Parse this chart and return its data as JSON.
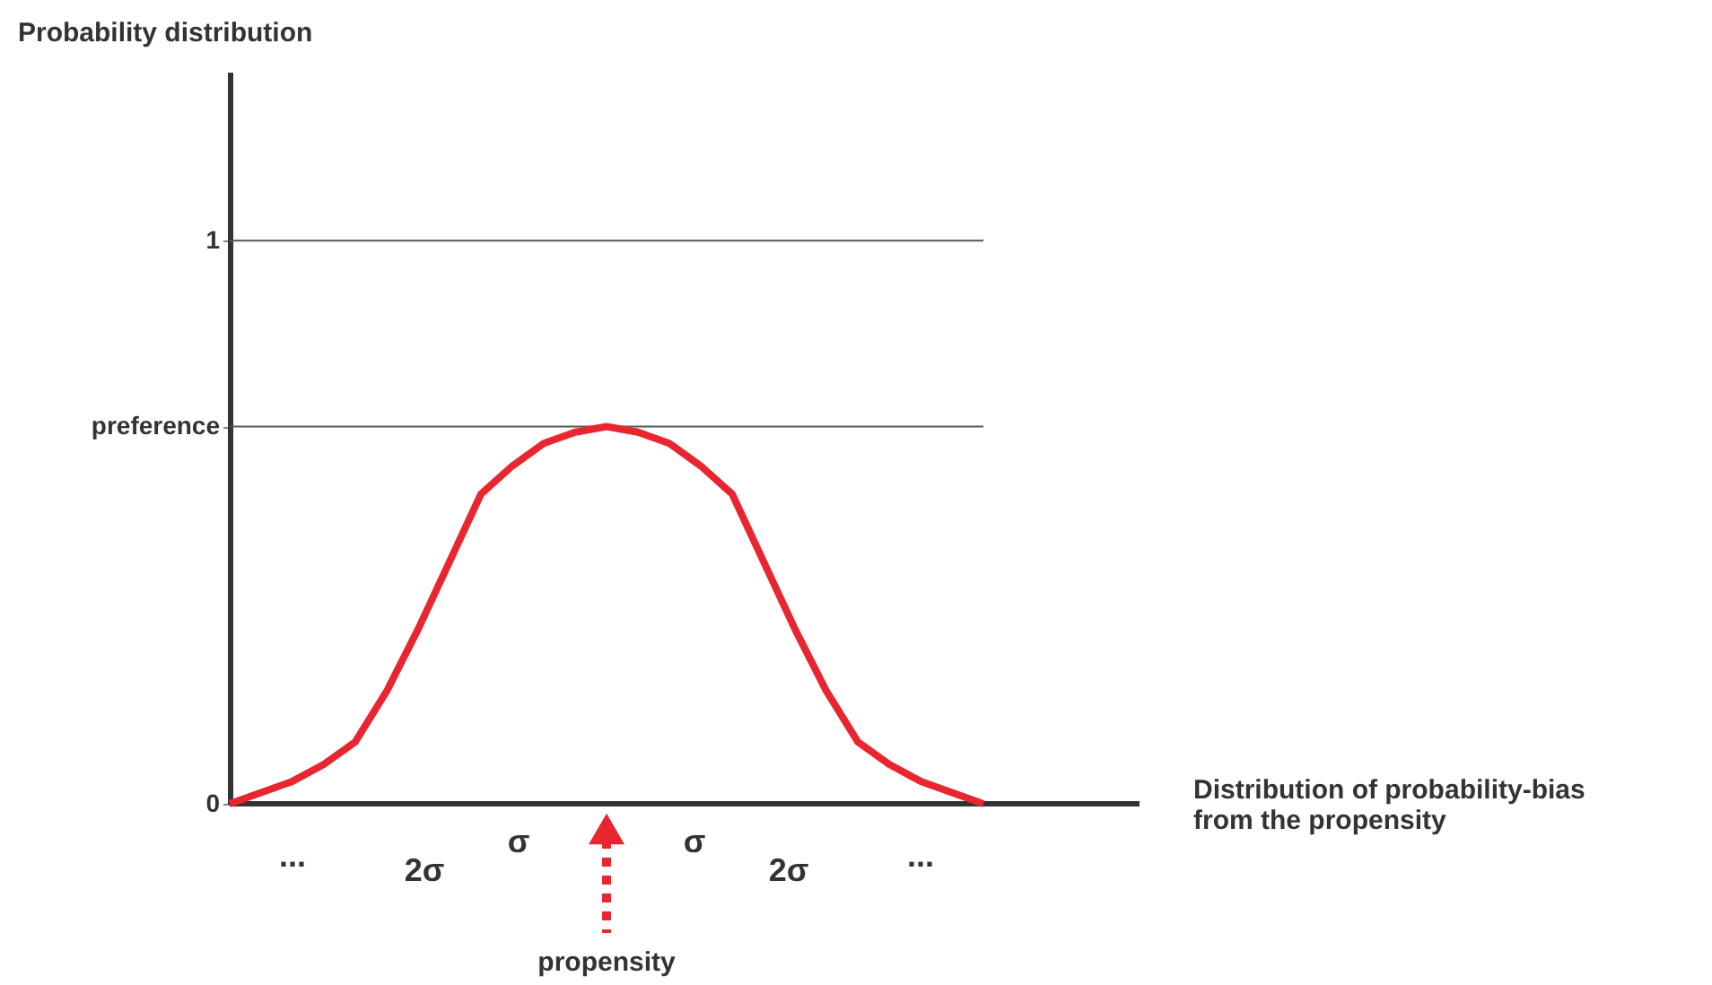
{
  "chart_data": {
    "type": "line",
    "ylabel": "Probability distribution",
    "categories": [
      null,
      null,
      null,
      null,
      null,
      null,
      null,
      null,
      null,
      null,
      null,
      null,
      null,
      null,
      null,
      null,
      null,
      null,
      null,
      null,
      null,
      null,
      null,
      null,
      null
    ],
    "series": [
      {
        "color": "#e8262f",
        "values": [
          0,
          0.02,
          0.04,
          0.07,
          0.11,
          0.2,
          0.31,
          0.43,
          0.55,
          0.6,
          0.64,
          0.66,
          0.67,
          0.66,
          0.64,
          0.6,
          0.55,
          0.43,
          0.31,
          0.2,
          0.11,
          0.07,
          0.04,
          0.02,
          0
        ]
      }
    ],
    "ylim": [
      0,
      1.3
    ],
    "yticks": [
      0,
      {
        "value": 0.67,
        "label": "preference"
      },
      1
    ],
    "tick_labels": "y",
    "grid": false,
    "marker": "none",
    "line_style": "solid",
    "ref_lines": [
      {
        "axis": "y",
        "value": 1,
        "color": "#555555",
        "line_style": "solid"
      },
      {
        "axis": "y",
        "value": 0.67,
        "color": "#555555",
        "line_style": "solid"
      }
    ],
    "annotations": [
      "σ",
      "σ",
      "2σ",
      "2σ",
      "...",
      "...",
      "propensity",
      "Distribution of probability-bias\nfrom the propensity"
    ]
  }
}
